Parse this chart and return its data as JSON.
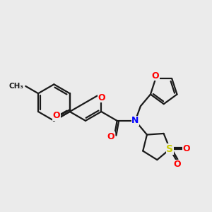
{
  "bg_color": "#ebebeb",
  "bond_color": "#1a1a1a",
  "o_color": "#ff0000",
  "n_color": "#0000ff",
  "s_color": "#cccc00",
  "lw": 1.6,
  "dbl_sep": 0.1,
  "fig_w": 3.0,
  "fig_h": 3.0,
  "dpi": 100,
  "xlim": [
    0,
    12
  ],
  "ylim": [
    0,
    12
  ]
}
